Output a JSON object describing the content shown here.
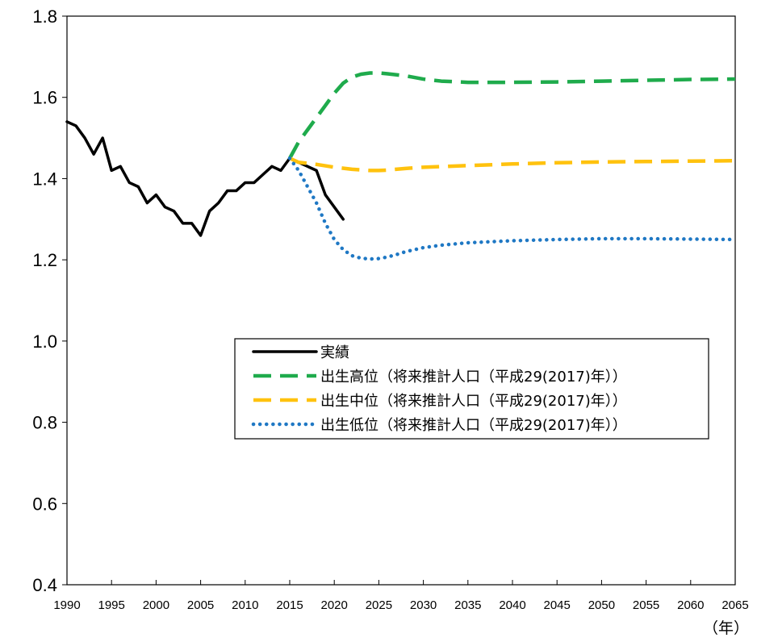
{
  "chart_data": {
    "type": "line",
    "title": "",
    "xlabel": "（年）",
    "ylabel": "",
    "xlim": [
      1990,
      2065
    ],
    "ylim": [
      0.4,
      1.8
    ],
    "x_ticks": [
      "1990",
      "1995",
      "2000",
      "2005",
      "2010",
      "2015",
      "2020",
      "2025",
      "2030",
      "2035",
      "2040",
      "2045",
      "2050",
      "2055",
      "2060",
      "2065"
    ],
    "y_ticks": [
      "0.4",
      "0.6",
      "0.8",
      "1.0",
      "1.2",
      "1.4",
      "1.6",
      "1.8"
    ],
    "grid": false,
    "legend_position": "center-right",
    "series": [
      {
        "name": "実績",
        "style": "solid",
        "color": "#000000",
        "x": [
          1990,
          1991,
          1992,
          1993,
          1994,
          1995,
          1996,
          1997,
          1998,
          1999,
          2000,
          2001,
          2002,
          2003,
          2004,
          2005,
          2006,
          2007,
          2008,
          2009,
          2010,
          2011,
          2012,
          2013,
          2014,
          2015,
          2016,
          2017,
          2018,
          2019,
          2020,
          2021
        ],
        "values": [
          1.54,
          1.53,
          1.5,
          1.46,
          1.5,
          1.42,
          1.43,
          1.39,
          1.38,
          1.34,
          1.36,
          1.33,
          1.32,
          1.29,
          1.29,
          1.26,
          1.32,
          1.34,
          1.37,
          1.37,
          1.39,
          1.39,
          1.41,
          1.43,
          1.42,
          1.45,
          1.44,
          1.43,
          1.42,
          1.36,
          1.33,
          1.3
        ]
      },
      {
        "name": "出生高位（将来推計人口（平成29(2017)年））",
        "style": "dashed",
        "color": "#1fab4c",
        "x": [
          2015,
          2016,
          2017,
          2018,
          2019,
          2020,
          2021,
          2022,
          2023,
          2024,
          2025,
          2026,
          2028,
          2030,
          2032,
          2035,
          2040,
          2045,
          2050,
          2055,
          2060,
          2065
        ],
        "values": [
          1.45,
          1.49,
          1.52,
          1.55,
          1.58,
          1.61,
          1.635,
          1.65,
          1.657,
          1.66,
          1.66,
          1.658,
          1.653,
          1.645,
          1.64,
          1.637,
          1.637,
          1.638,
          1.64,
          1.642,
          1.644,
          1.645
        ]
      },
      {
        "name": "出生中位（将来推計人口（平成29(2017)年））",
        "style": "dashed",
        "color": "#ffc20e",
        "x": [
          2015,
          2016,
          2018,
          2020,
          2022,
          2024,
          2025,
          2026,
          2028,
          2030,
          2035,
          2040,
          2045,
          2050,
          2055,
          2060,
          2065
        ],
        "values": [
          1.45,
          1.44,
          1.435,
          1.428,
          1.423,
          1.42,
          1.42,
          1.421,
          1.425,
          1.428,
          1.432,
          1.436,
          1.439,
          1.441,
          1.442,
          1.443,
          1.444
        ]
      },
      {
        "name": "出生低位（将来推計人口（平成29(2017)年））",
        "style": "dotted",
        "color": "#1f78c4",
        "x": [
          2015,
          2016,
          2017,
          2018,
          2019,
          2020,
          2021,
          2022,
          2023,
          2024,
          2025,
          2026,
          2027,
          2028,
          2030,
          2032,
          2035,
          2040,
          2045,
          2050,
          2055,
          2060,
          2065
        ],
        "values": [
          1.45,
          1.42,
          1.38,
          1.34,
          1.29,
          1.25,
          1.225,
          1.21,
          1.204,
          1.202,
          1.203,
          1.207,
          1.213,
          1.22,
          1.23,
          1.236,
          1.242,
          1.247,
          1.25,
          1.252,
          1.252,
          1.251,
          1.25
        ]
      }
    ]
  }
}
